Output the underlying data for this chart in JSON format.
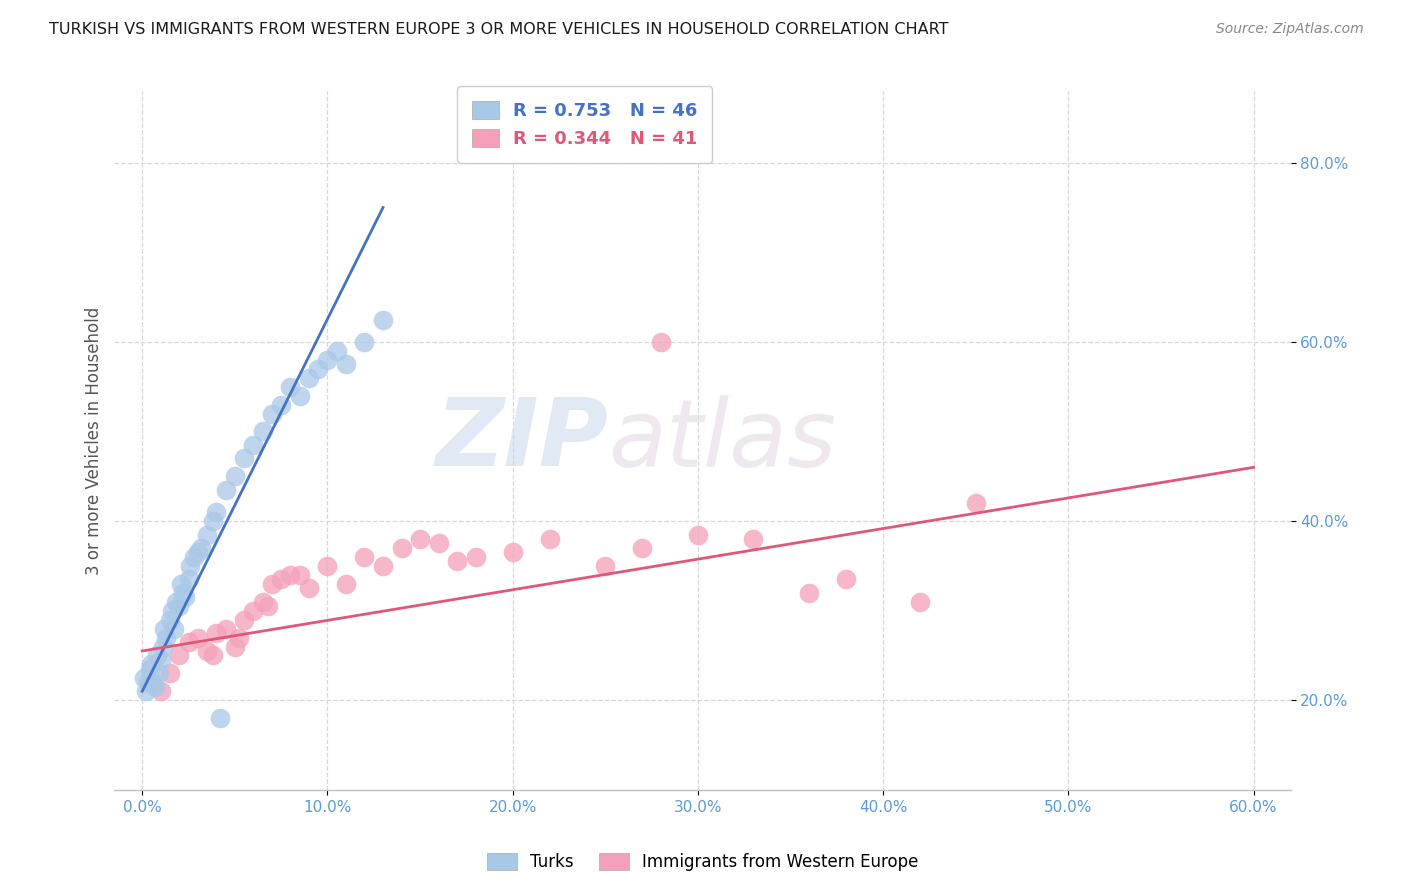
{
  "title": "TURKISH VS IMMIGRANTS FROM WESTERN EUROPE 3 OR MORE VEHICLES IN HOUSEHOLD CORRELATION CHART",
  "source": "Source: ZipAtlas.com",
  "ylabel_label": "3 or more Vehicles in Household",
  "watermark_zip": "ZIP",
  "watermark_atlas": "atlas",
  "turks_color": "#a8c8e8",
  "turks_edge_color": "#a8c8e8",
  "immigrants_color": "#f4a0b8",
  "immigrants_edge_color": "#f4a0b8",
  "turks_line_color": "#4472c4",
  "immigrants_line_color": "#e05878",
  "turks_R": 0.753,
  "turks_N": 46,
  "immigrants_R": 0.344,
  "immigrants_N": 41,
  "xlim": [
    -1.5,
    62
  ],
  "ylim": [
    10,
    88
  ],
  "xtick_vals": [
    0,
    10,
    20,
    30,
    40,
    50,
    60
  ],
  "ytick_vals": [
    20,
    40,
    60,
    80
  ],
  "grid_color": "#d8d8d8",
  "turks_scatter_x": [
    0.1,
    0.2,
    0.3,
    0.4,
    0.5,
    0.6,
    0.7,
    0.8,
    0.9,
    1.0,
    1.1,
    1.2,
    1.3,
    1.5,
    1.6,
    1.7,
    1.8,
    2.0,
    2.1,
    2.2,
    2.3,
    2.5,
    2.6,
    2.8,
    3.0,
    3.2,
    3.5,
    3.8,
    4.0,
    4.5,
    5.0,
    5.5,
    6.0,
    6.5,
    7.0,
    7.5,
    8.0,
    8.5,
    9.0,
    9.5,
    10.0,
    10.5,
    11.0,
    12.0,
    13.0,
    4.2
  ],
  "turks_scatter_y": [
    22.5,
    21.0,
    22.0,
    23.5,
    24.0,
    22.0,
    21.5,
    25.0,
    23.0,
    24.5,
    26.0,
    28.0,
    27.0,
    29.0,
    30.0,
    28.0,
    31.0,
    30.5,
    33.0,
    32.0,
    31.5,
    33.5,
    35.0,
    36.0,
    36.5,
    37.0,
    38.5,
    40.0,
    41.0,
    43.5,
    45.0,
    47.0,
    48.5,
    50.0,
    52.0,
    53.0,
    55.0,
    54.0,
    56.0,
    57.0,
    58.0,
    59.0,
    57.5,
    60.0,
    62.5,
    18.0
  ],
  "immigrants_scatter_x": [
    0.5,
    1.0,
    1.5,
    2.0,
    2.5,
    3.0,
    3.5,
    4.0,
    4.5,
    5.0,
    5.5,
    6.0,
    6.5,
    7.0,
    7.5,
    8.0,
    9.0,
    10.0,
    11.0,
    12.0,
    13.0,
    14.0,
    15.0,
    16.0,
    17.0,
    18.0,
    20.0,
    22.0,
    25.0,
    27.0,
    30.0,
    33.0,
    36.0,
    38.0,
    42.0,
    45.0,
    8.5,
    3.8,
    5.2,
    6.8,
    28.0
  ],
  "immigrants_scatter_y": [
    22.0,
    21.0,
    23.0,
    25.0,
    26.5,
    27.0,
    25.5,
    27.5,
    28.0,
    26.0,
    29.0,
    30.0,
    31.0,
    33.0,
    33.5,
    34.0,
    32.5,
    35.0,
    33.0,
    36.0,
    35.0,
    37.0,
    38.0,
    37.5,
    35.5,
    36.0,
    36.5,
    38.0,
    35.0,
    37.0,
    38.5,
    38.0,
    32.0,
    33.5,
    31.0,
    42.0,
    34.0,
    25.0,
    27.0,
    30.5,
    60.0
  ],
  "turks_line_x0": 0.0,
  "turks_line_y0": 21.0,
  "turks_line_x1": 13.0,
  "turks_line_y1": 75.0,
  "immigrants_line_x0": 0.0,
  "immigrants_line_y0": 25.5,
  "immigrants_line_x1": 60.0,
  "immigrants_line_y1": 46.0
}
